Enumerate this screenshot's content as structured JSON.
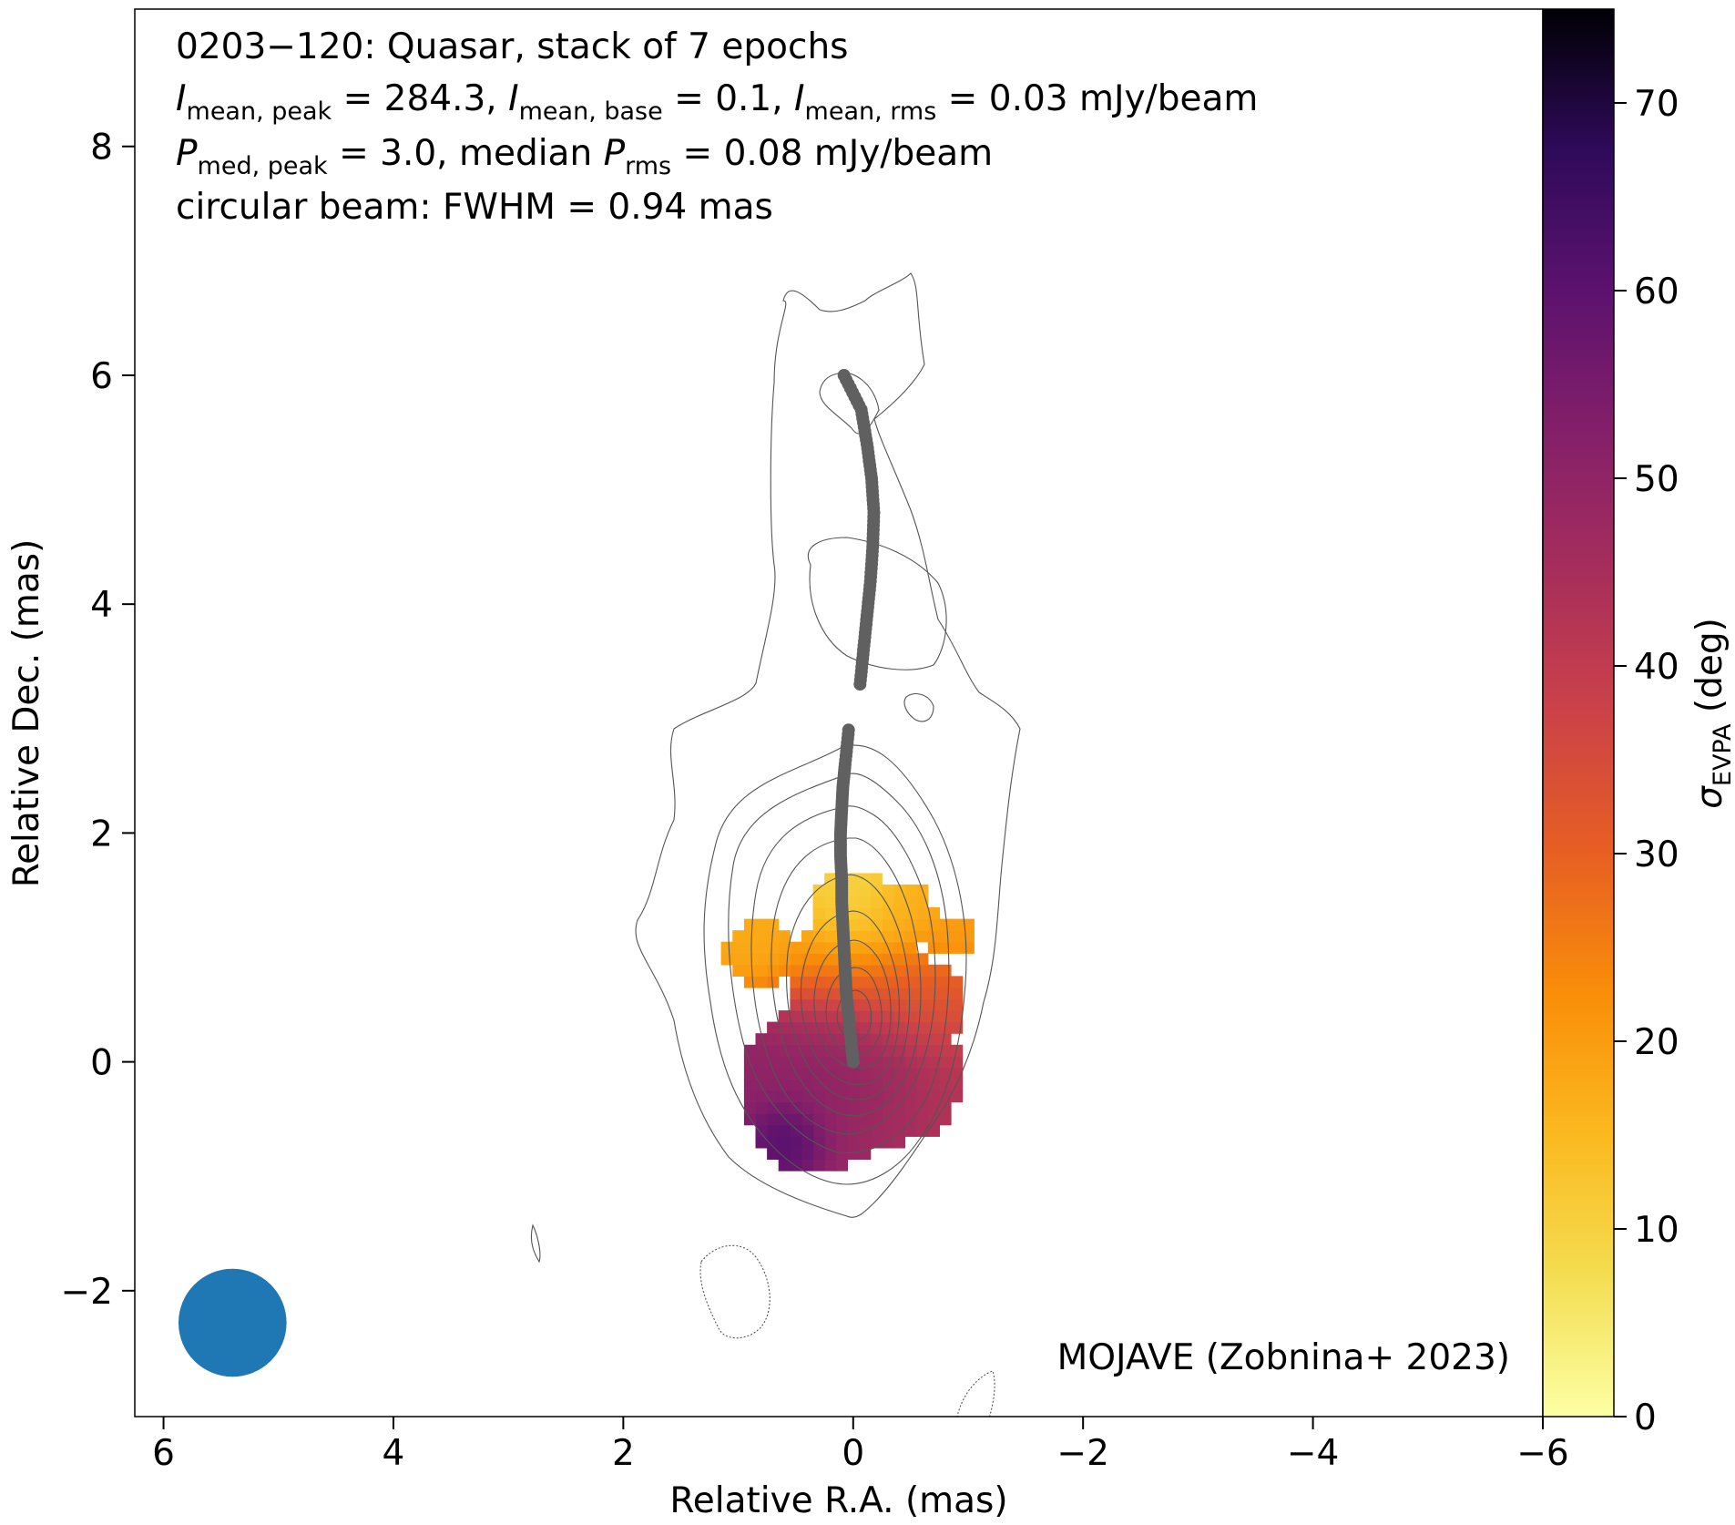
{
  "chart_data": {
    "type": "heatmap",
    "title_lines": [
      "0203−120: Quasar, stack of 7 epochs",
      {
        "parts": [
          [
            "I",
            "i"
          ],
          [
            "mean, peak",
            "sub"
          ],
          [
            " = 284.3, ",
            ""
          ],
          [
            "I",
            "i"
          ],
          [
            "mean, base",
            "sub"
          ],
          [
            " = 0.1, ",
            ""
          ],
          [
            "I",
            "i"
          ],
          [
            "mean, rms",
            "sub"
          ],
          [
            " = 0.03 mJy/beam",
            ""
          ]
        ]
      },
      {
        "parts": [
          [
            "P",
            "i"
          ],
          [
            "med, peak",
            "sub"
          ],
          [
            " = 3.0, median ",
            ""
          ],
          [
            "P",
            "i"
          ],
          [
            "rms",
            "sub"
          ],
          [
            " = 0.08 mJy/beam",
            ""
          ]
        ]
      },
      "circular beam: FWHM = 0.94 mas"
    ],
    "credit": "MOJAVE (Zobnina+ 2023)",
    "xlabel": "Relative R.A. (mas)",
    "ylabel": "Relative Dec. (mas)",
    "colorbar_label": "σ",
    "colorbar_label_sub": "EVPA",
    "colorbar_label_unit": " (deg)",
    "xlim": [
      6.25,
      -6.0
    ],
    "ylim": [
      -3.1,
      9.2
    ],
    "x_ticks": [
      6,
      4,
      2,
      0,
      -2,
      -4,
      -6
    ],
    "x_tick_labels": [
      "6",
      "4",
      "2",
      "0",
      "−2",
      "−4",
      "−6"
    ],
    "y_ticks": [
      -2,
      0,
      2,
      4,
      6,
      8
    ],
    "y_tick_labels": [
      "−2",
      "0",
      "2",
      "4",
      "6",
      "8"
    ],
    "colorbar_range": [
      0,
      75
    ],
    "colorbar_ticks": [
      0,
      10,
      20,
      30,
      40,
      50,
      60,
      70
    ],
    "colormap": "inferno_r",
    "beam": {
      "fwhm_mas": 0.94,
      "center": [
        5.4,
        -2.28
      ],
      "color": "#1f77b4"
    },
    "ridge_line": {
      "color": "#606060",
      "segments": [
        [
          [
            0.0,
            0.0
          ],
          [
            0.02,
            0.2
          ],
          [
            0.04,
            0.4
          ],
          [
            0.06,
            0.6
          ],
          [
            0.07,
            0.8
          ],
          [
            0.08,
            1.0
          ],
          [
            0.09,
            1.2
          ],
          [
            0.1,
            1.4
          ],
          [
            0.1,
            1.6
          ],
          [
            0.11,
            1.8
          ],
          [
            0.11,
            2.0
          ],
          [
            0.1,
            2.2
          ],
          [
            0.09,
            2.4
          ],
          [
            0.07,
            2.6
          ],
          [
            0.04,
            2.9
          ]
        ],
        [
          [
            -0.06,
            3.3
          ],
          [
            -0.09,
            3.6
          ],
          [
            -0.12,
            3.9
          ],
          [
            -0.15,
            4.2
          ],
          [
            -0.17,
            4.5
          ],
          [
            -0.18,
            4.8
          ],
          [
            -0.16,
            5.1
          ],
          [
            -0.12,
            5.4
          ],
          [
            -0.07,
            5.7
          ],
          [
            0.08,
            6.0
          ]
        ]
      ]
    },
    "evpa_blobs": [
      {
        "x": 0.0,
        "y": 0.05,
        "r": 0.55,
        "sigma_evpa": 57
      },
      {
        "x": 0.25,
        "y": -0.2,
        "r": 0.7,
        "sigma_evpa": 50
      },
      {
        "x": 0.55,
        "y": -0.65,
        "r": 0.25,
        "sigma_evpa": 66
      },
      {
        "x": -0.35,
        "y": -0.1,
        "r": 0.6,
        "sigma_evpa": 40
      },
      {
        "x": -0.55,
        "y": 0.5,
        "r": 0.4,
        "sigma_evpa": 30
      },
      {
        "x": 0.0,
        "y": 0.75,
        "r": 0.55,
        "sigma_evpa": 18
      },
      {
        "x": 0.0,
        "y": 1.35,
        "r": 0.35,
        "sigma_evpa": 9
      },
      {
        "x": 0.8,
        "y": 0.95,
        "r": 0.3,
        "sigma_evpa": 17
      },
      {
        "x": -0.45,
        "y": 1.3,
        "r": 0.25,
        "sigma_evpa": 17
      },
      {
        "x": -0.85,
        "y": 1.1,
        "r": 0.2,
        "sigma_evpa": 20
      }
    ]
  }
}
